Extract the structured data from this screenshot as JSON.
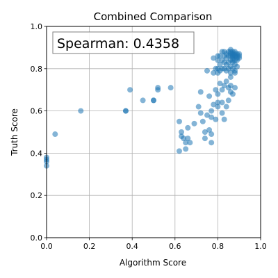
{
  "chart_data": {
    "type": "scatter",
    "title": "Combined Comparison",
    "xlabel": "Algorithm Score",
    "ylabel": "Truth Score",
    "xlim": [
      0.0,
      1.0
    ],
    "ylim": [
      0.0,
      1.0
    ],
    "xticks": [
      "0.0",
      "0.2",
      "0.4",
      "0.6",
      "0.8",
      "1.0"
    ],
    "yticks": [
      "0.0",
      "0.2",
      "0.4",
      "0.6",
      "0.8",
      "1.0"
    ],
    "grid": true,
    "annotation": "Spearman: 0.4358",
    "marker_color": "#1f77b4",
    "marker_alpha": 0.55,
    "points": [
      [
        0.0,
        0.34
      ],
      [
        0.0,
        0.36
      ],
      [
        0.0,
        0.37
      ],
      [
        0.0,
        0.38
      ],
      [
        0.04,
        0.49
      ],
      [
        0.16,
        0.6
      ],
      [
        0.37,
        0.6
      ],
      [
        0.37,
        0.6
      ],
      [
        0.39,
        0.7
      ],
      [
        0.45,
        0.65
      ],
      [
        0.5,
        0.65
      ],
      [
        0.5,
        0.65
      ],
      [
        0.52,
        0.7
      ],
      [
        0.52,
        0.71
      ],
      [
        0.58,
        0.71
      ],
      [
        0.62,
        0.41
      ],
      [
        0.62,
        0.55
      ],
      [
        0.63,
        0.48
      ],
      [
        0.63,
        0.5
      ],
      [
        0.64,
        0.47
      ],
      [
        0.65,
        0.45
      ],
      [
        0.65,
        0.42
      ],
      [
        0.66,
        0.47
      ],
      [
        0.66,
        0.52
      ],
      [
        0.67,
        0.45
      ],
      [
        0.69,
        0.54
      ],
      [
        0.71,
        0.62
      ],
      [
        0.72,
        0.59
      ],
      [
        0.72,
        0.69
      ],
      [
        0.73,
        0.55
      ],
      [
        0.74,
        0.47
      ],
      [
        0.74,
        0.5
      ],
      [
        0.75,
        0.58
      ],
      [
        0.75,
        0.79
      ],
      [
        0.76,
        0.51
      ],
      [
        0.76,
        0.67
      ],
      [
        0.77,
        0.45
      ],
      [
        0.77,
        0.49
      ],
      [
        0.77,
        0.57
      ],
      [
        0.77,
        0.6
      ],
      [
        0.78,
        0.63
      ],
      [
        0.78,
        0.78
      ],
      [
        0.78,
        0.85
      ],
      [
        0.79,
        0.56
      ],
      [
        0.79,
        0.7
      ],
      [
        0.79,
        0.8
      ],
      [
        0.8,
        0.62
      ],
      [
        0.8,
        0.64
      ],
      [
        0.8,
        0.68
      ],
      [
        0.81,
        0.73
      ],
      [
        0.81,
        0.79
      ],
      [
        0.82,
        0.59
      ],
      [
        0.82,
        0.64
      ],
      [
        0.82,
        0.7
      ],
      [
        0.83,
        0.56
      ],
      [
        0.83,
        0.72
      ],
      [
        0.84,
        0.62
      ],
      [
        0.84,
        0.74
      ],
      [
        0.85,
        0.65
      ],
      [
        0.85,
        0.71
      ],
      [
        0.86,
        0.69
      ],
      [
        0.86,
        0.72
      ],
      [
        0.86,
        0.76
      ],
      [
        0.87,
        0.68
      ],
      [
        0.88,
        0.71
      ],
      [
        0.88,
        0.78
      ],
      [
        0.8,
        0.78
      ],
      [
        0.8,
        0.8
      ],
      [
        0.8,
        0.84
      ],
      [
        0.8,
        0.86
      ],
      [
        0.81,
        0.82
      ],
      [
        0.81,
        0.86
      ],
      [
        0.82,
        0.8
      ],
      [
        0.82,
        0.84
      ],
      [
        0.82,
        0.88
      ],
      [
        0.83,
        0.8
      ],
      [
        0.83,
        0.83
      ],
      [
        0.83,
        0.86
      ],
      [
        0.83,
        0.88
      ],
      [
        0.84,
        0.79
      ],
      [
        0.84,
        0.82
      ],
      [
        0.84,
        0.85
      ],
      [
        0.84,
        0.87
      ],
      [
        0.85,
        0.8
      ],
      [
        0.85,
        0.83
      ],
      [
        0.85,
        0.86
      ],
      [
        0.85,
        0.88
      ],
      [
        0.86,
        0.78
      ],
      [
        0.86,
        0.81
      ],
      [
        0.86,
        0.84
      ],
      [
        0.86,
        0.87
      ],
      [
        0.86,
        0.89
      ],
      [
        0.87,
        0.8
      ],
      [
        0.87,
        0.83
      ],
      [
        0.87,
        0.85
      ],
      [
        0.87,
        0.87
      ],
      [
        0.87,
        0.88
      ],
      [
        0.88,
        0.79
      ],
      [
        0.88,
        0.82
      ],
      [
        0.88,
        0.84
      ],
      [
        0.88,
        0.86
      ],
      [
        0.88,
        0.88
      ],
      [
        0.89,
        0.81
      ],
      [
        0.89,
        0.84
      ],
      [
        0.89,
        0.86
      ],
      [
        0.89,
        0.87
      ],
      [
        0.9,
        0.85
      ],
      [
        0.9,
        0.86
      ],
      [
        0.9,
        0.87
      ],
      [
        0.87,
        0.86
      ],
      [
        0.87,
        0.86
      ],
      [
        0.88,
        0.86
      ],
      [
        0.86,
        0.86
      ],
      [
        0.87,
        0.87
      ],
      [
        0.86,
        0.88
      ],
      [
        0.88,
        0.87
      ],
      [
        0.87,
        0.84
      ],
      [
        0.89,
        0.85
      ]
    ]
  }
}
